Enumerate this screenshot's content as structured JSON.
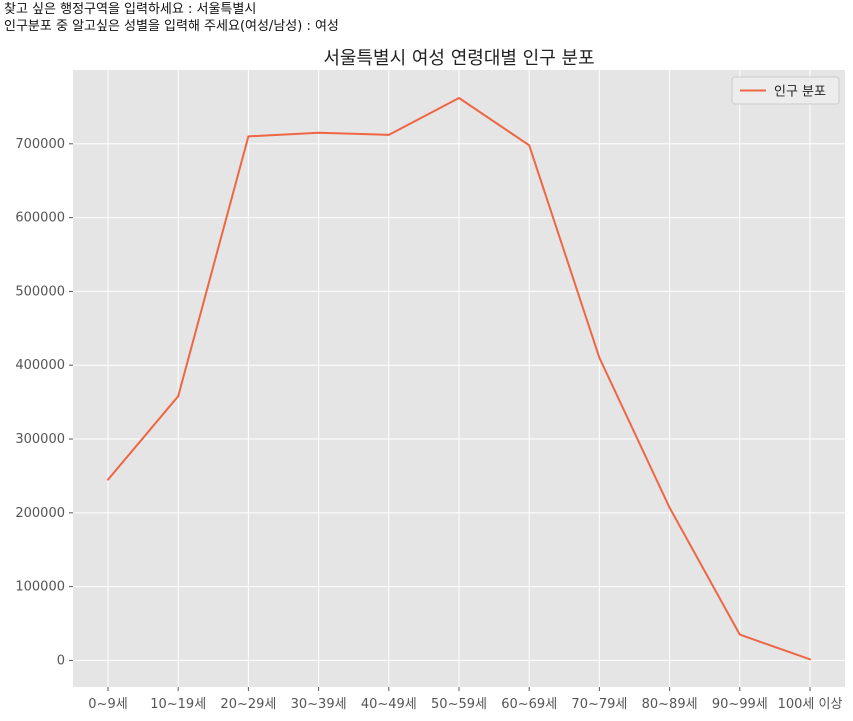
{
  "console": {
    "line1": "찾고 싶은 행정구역을 입력하세요 : 서울특별시",
    "line2": "인구분포 중 알고싶은 성별을 입력해 주세요(여성/남성) : 여성"
  },
  "colors": {
    "plot_background": "#e5e5e5",
    "grid": "#ffffff",
    "line": "#ee6644",
    "tick_text": "#555555"
  },
  "chart_data": {
    "type": "line",
    "title": "서울특별시 여성 연령대별 인구 분포",
    "xlabel": "",
    "ylabel": "",
    "categories": [
      "0~9세",
      "10~19세",
      "20~29세",
      "30~39세",
      "40~49세",
      "50~59세",
      "60~69세",
      "70~79세",
      "80~89세",
      "90~99세",
      "100세 이상"
    ],
    "series": [
      {
        "name": "인구 분포",
        "values": [
          245000,
          358000,
          710000,
          715000,
          712000,
          762000,
          698000,
          410000,
          207000,
          35000,
          1500
        ]
      }
    ],
    "yticks": [
      0,
      100000,
      200000,
      300000,
      400000,
      500000,
      600000,
      700000
    ],
    "ylim": [
      -36000,
      800000
    ],
    "grid": true,
    "legend": "top-right"
  }
}
